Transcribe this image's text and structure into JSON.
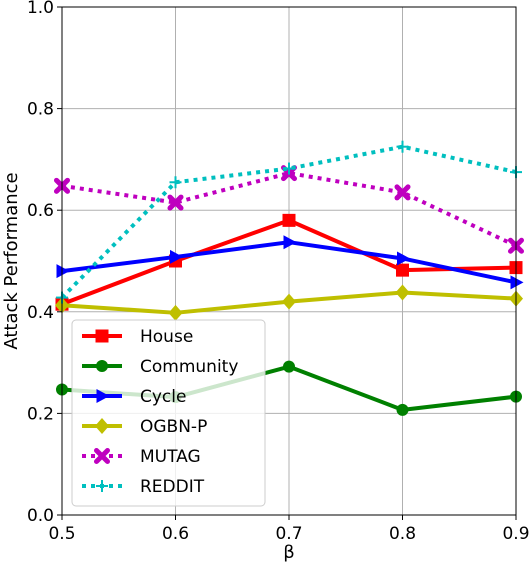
{
  "chart_data": {
    "type": "line",
    "title": "",
    "xlabel": "β",
    "ylabel": "Attack Performance",
    "x": [
      0.5,
      0.6,
      0.7,
      0.8,
      0.9
    ],
    "x_tick_labels": [
      "0.5",
      "0.6",
      "0.7",
      "0.8",
      "0.9"
    ],
    "y_tick_labels": [
      "0.0",
      "0.2",
      "0.4",
      "0.6",
      "0.8",
      "1.0"
    ],
    "xlim": [
      0.5,
      0.9
    ],
    "ylim": [
      0.0,
      1.0
    ],
    "grid": true,
    "legend_position": "lower-left",
    "series": [
      {
        "name": "House",
        "color": "#ff0000",
        "marker": "square",
        "line": "solid",
        "values": [
          0.415,
          0.5,
          0.58,
          0.482,
          0.487
        ]
      },
      {
        "name": "Community",
        "color": "#008000",
        "marker": "circle",
        "line": "solid",
        "values": [
          0.247,
          0.232,
          0.292,
          0.207,
          0.233
        ]
      },
      {
        "name": "Cycle",
        "color": "#0000ff",
        "marker": "triangle-right",
        "line": "solid",
        "values": [
          0.48,
          0.508,
          0.537,
          0.505,
          0.458
        ]
      },
      {
        "name": "OGBN-P",
        "color": "#bfbf00",
        "marker": "diamond",
        "line": "solid",
        "values": [
          0.413,
          0.398,
          0.42,
          0.438,
          0.426
        ]
      },
      {
        "name": "MUTAG",
        "color": "#bf00bf",
        "marker": "x-filled",
        "line": "dotted",
        "values": [
          0.648,
          0.615,
          0.673,
          0.635,
          0.53
        ]
      },
      {
        "name": "REDDIT",
        "color": "#00bfbf",
        "marker": "plus",
        "line": "dotted",
        "values": [
          0.428,
          0.655,
          0.682,
          0.725,
          0.675
        ]
      }
    ]
  }
}
